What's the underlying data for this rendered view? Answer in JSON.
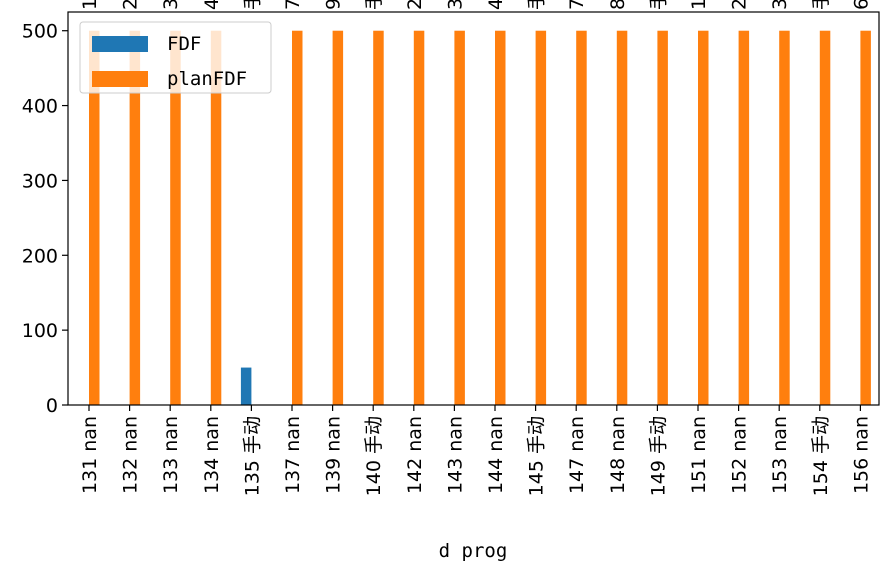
{
  "chart_data": {
    "type": "bar",
    "title": "",
    "xlabel": "d prog",
    "ylabel": "",
    "ylim": [
      0,
      525
    ],
    "yticks": [
      0,
      100,
      200,
      300,
      400,
      500
    ],
    "grid": false,
    "legend_position": "top-left",
    "categories": [
      "131 nan",
      "132 nan",
      "133 nan",
      "134 nan",
      "135 手动",
      "137 nan",
      "139 nan",
      "140 手动",
      "142 nan",
      "143 nan",
      "144 nan",
      "145 手动",
      "147 nan",
      "148 nan",
      "149 手动",
      "151 nan",
      "152 nan",
      "153 nan",
      "154 手动",
      "156 nan"
    ],
    "series": [
      {
        "name": "FDF",
        "color": "#1f77b4",
        "values": [
          0,
          0,
          0,
          0,
          50,
          0,
          0,
          0,
          0,
          0,
          0,
          0,
          0,
          0,
          0,
          0,
          0,
          0,
          0,
          0
        ]
      },
      {
        "name": "planFDF",
        "color": "#ff7f0e",
        "values": [
          500,
          500,
          500,
          500,
          0,
          500,
          500,
          500,
          500,
          500,
          500,
          500,
          500,
          500,
          500,
          500,
          500,
          500,
          500,
          500
        ]
      }
    ],
    "top_overflow_labels": [
      "1",
      "2",
      "3",
      "4",
      "手",
      "7",
      "9",
      "手",
      "2",
      "3",
      "4",
      "手",
      "7",
      "8",
      "手",
      "1",
      "2",
      "3",
      "手",
      "6"
    ]
  }
}
